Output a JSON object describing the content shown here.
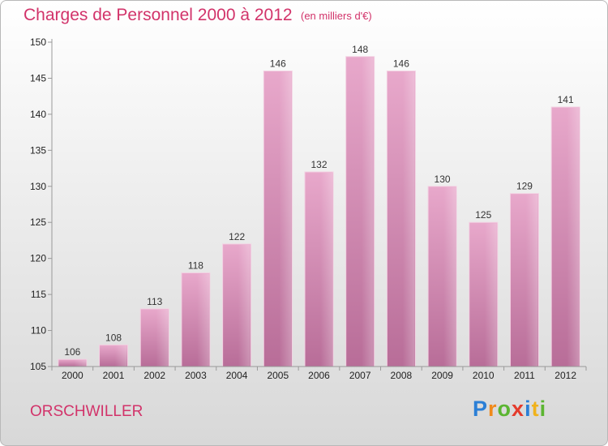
{
  "header": {
    "title": "Charges de Personnel 2000 à 2012",
    "unit": "(en milliers d'€)"
  },
  "footer": {
    "commune": "ORSCHWILLER",
    "brand": "Proxiti"
  },
  "brand_letters": [
    {
      "ch": "P",
      "color": "#2b7fd6"
    },
    {
      "ch": "r",
      "color": "#f08a1c"
    },
    {
      "ch": "o",
      "color": "#5bb531"
    },
    {
      "ch": "x",
      "color": "#e43b2c"
    },
    {
      "ch": "i",
      "color": "#2b7fd6"
    },
    {
      "ch": "t",
      "color": "#f0b21c"
    },
    {
      "ch": "i",
      "color": "#5bb531"
    }
  ],
  "chart_data": {
    "type": "bar",
    "categories": [
      "2000",
      "2001",
      "2002",
      "2003",
      "2004",
      "2005",
      "2006",
      "2007",
      "2008",
      "2009",
      "2010",
      "2011",
      "2012"
    ],
    "values": [
      106,
      108,
      113,
      118,
      122,
      146,
      132,
      148,
      146,
      130,
      125,
      129,
      141
    ],
    "ylim": [
      105,
      150
    ],
    "yticks": [
      105,
      110,
      115,
      120,
      125,
      130,
      135,
      140,
      145,
      150
    ],
    "grid": false,
    "bar_color": "#d77fab"
  }
}
